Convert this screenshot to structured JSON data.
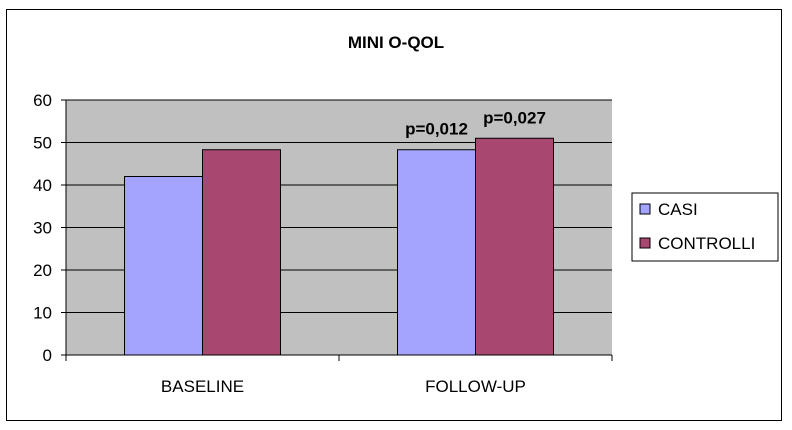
{
  "chart_data": {
    "type": "bar",
    "title": "MINI O-QOL",
    "categories": [
      "BASELINE",
      "FOLLOW-UP"
    ],
    "series": [
      {
        "name": "CASI",
        "values": [
          42,
          48.3
        ],
        "color": "#a4a4ff"
      },
      {
        "name": "CONTROLLI",
        "values": [
          48.3,
          51
        ],
        "color": "#a8476f"
      }
    ],
    "ylim": [
      0,
      60
    ],
    "yticks": [
      "0",
      "10",
      "20",
      "30",
      "40",
      "50",
      "60"
    ],
    "grid": true,
    "plot_background": "#c0c0c0",
    "legend_position": "right",
    "annotations": [
      {
        "text": "p=0,012",
        "category": "FOLLOW-UP",
        "series": "CASI"
      },
      {
        "text": "p=0,027",
        "category": "FOLLOW-UP",
        "series": "CONTROLLI"
      }
    ]
  }
}
